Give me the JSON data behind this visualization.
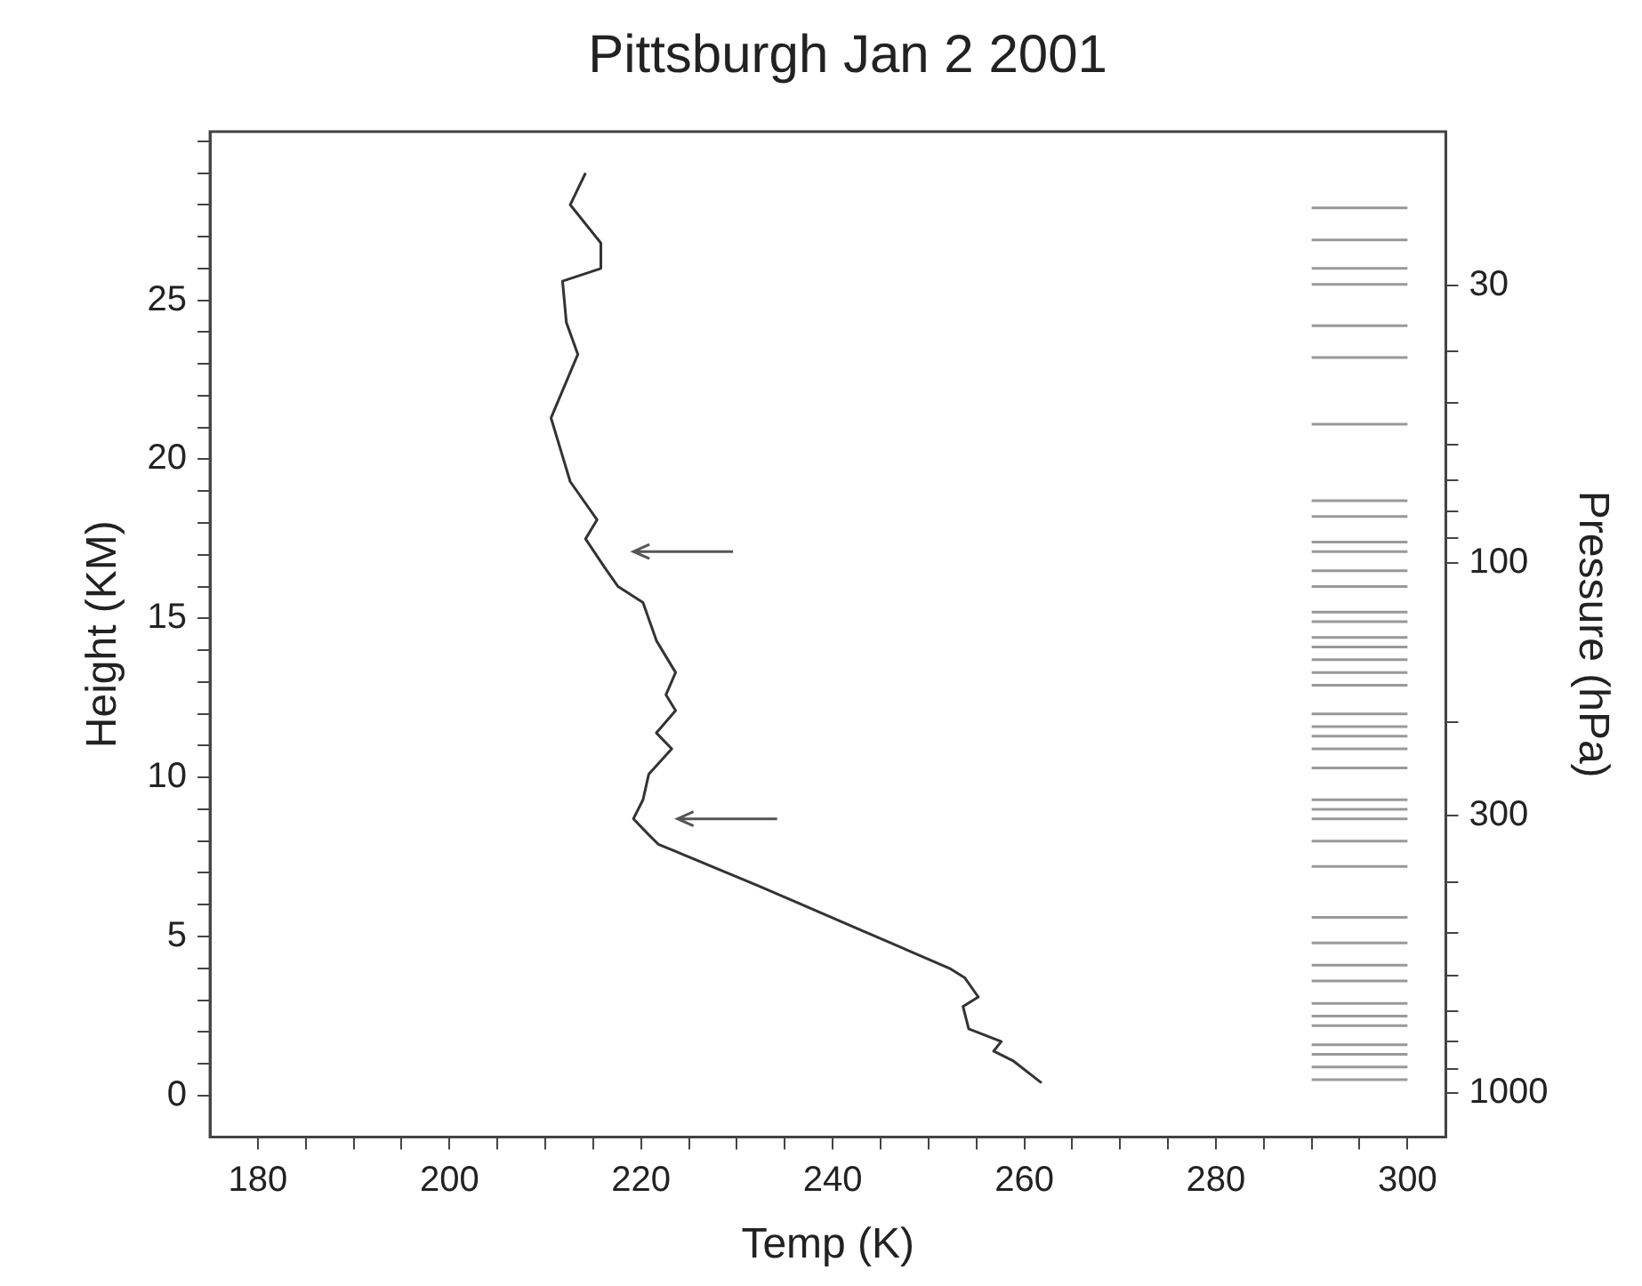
{
  "chart_data": {
    "type": "line",
    "title": "Pittsburgh Jan 2 2001",
    "xlabel": "Temp (K)",
    "ylabel": "Height (KM)",
    "y2label": "Pressure (hPa)",
    "xlim": [
      175,
      304
    ],
    "ylim": [
      -1.3,
      30.3
    ],
    "y2lim": [
      1210,
      15.4
    ],
    "xticks": [
      180,
      {
        "value": 185,
        "label": null
      },
      {
        "value": 190,
        "label": null
      },
      {
        "value": 195,
        "label": null
      },
      200,
      {
        "value": 205,
        "label": null
      },
      {
        "value": 210,
        "label": null
      },
      {
        "value": 215,
        "label": null
      },
      220,
      {
        "value": 225,
        "label": null
      },
      {
        "value": 230,
        "label": null
      },
      {
        "value": 235,
        "label": null
      },
      240,
      {
        "value": 245,
        "label": null
      },
      {
        "value": 250,
        "label": null
      },
      {
        "value": 255,
        "label": null
      },
      260,
      {
        "value": 265,
        "label": null
      },
      {
        "value": 270,
        "label": null
      },
      {
        "value": 275,
        "label": null
      },
      280,
      {
        "value": 285,
        "label": null
      },
      {
        "value": 290,
        "label": null
      },
      {
        "value": 295,
        "label": null
      },
      300
    ],
    "yticks": [
      0,
      {
        "value": 1,
        "label": null
      },
      {
        "value": 2,
        "label": null
      },
      {
        "value": 3,
        "label": null
      },
      {
        "value": 4,
        "label": null
      },
      5,
      {
        "value": 6,
        "label": null
      },
      {
        "value": 7,
        "label": null
      },
      {
        "value": 8,
        "label": null
      },
      {
        "value": 9,
        "label": null
      },
      10,
      {
        "value": 11,
        "label": null
      },
      {
        "value": 12,
        "label": null
      },
      {
        "value": 13,
        "label": null
      },
      {
        "value": 14,
        "label": null
      },
      15,
      {
        "value": 16,
        "label": null
      },
      {
        "value": 17,
        "label": null
      },
      {
        "value": 18,
        "label": null
      },
      {
        "value": 19,
        "label": null
      },
      20,
      {
        "value": 21,
        "label": null
      },
      {
        "value": 22,
        "label": null
      },
      {
        "value": 23,
        "label": null
      },
      {
        "value": 24,
        "label": null
      },
      25,
      {
        "value": 26,
        "label": null
      },
      {
        "value": 27,
        "label": null
      },
      {
        "value": 28,
        "label": null
      },
      {
        "value": 29,
        "label": null
      },
      {
        "value": 30,
        "label": null
      }
    ],
    "y2ticks": [
      30,
      {
        "value": 40,
        "label": null
      },
      {
        "value": 50,
        "label": null
      },
      {
        "value": 60,
        "label": null
      },
      {
        "value": 70,
        "label": null
      },
      {
        "value": 80,
        "label": null
      },
      {
        "value": 90,
        "label": null
      },
      100,
      {
        "value": 200,
        "label": null
      },
      300,
      {
        "value": 400,
        "label": null
      },
      {
        "value": 500,
        "label": null
      },
      {
        "value": 600,
        "label": null
      },
      {
        "value": 700,
        "label": null
      },
      {
        "value": 800,
        "label": null
      },
      {
        "value": 900,
        "label": null
      },
      1000
    ],
    "log": "y2",
    "grid": false,
    "legend": false,
    "marker": "none",
    "line_style": "solid",
    "series": [
      {
        "color": "#333333",
        "x": [
          261.8,
          258.8,
          256.8,
          257.6,
          254.2,
          253.6,
          255.2,
          253.8,
          252.2,
          242.2,
          232.2,
          221.8,
          220.8,
          219.2,
          220.2,
          220.8,
          223.2,
          221.6,
          223.6,
          222.6,
          223.6,
          221.6,
          220.2,
          217.6,
          216.2,
          214.2,
          215.4,
          212.6,
          210.6,
          213.4,
          212.2,
          211.8,
          215.8,
          215.8,
          212.6,
          214.2
        ],
        "values": [
          0.4,
          1.1,
          1.4,
          1.7,
          2.1,
          2.8,
          3.1,
          3.7,
          4.0,
          5.3,
          6.6,
          7.9,
          8.2,
          8.7,
          9.3,
          10.1,
          10.9,
          11.4,
          12.1,
          12.6,
          13.3,
          14.3,
          15.5,
          16.0,
          16.6,
          17.5,
          18.1,
          19.3,
          21.3,
          23.3,
          24.3,
          25.6,
          26.0,
          26.8,
          28.0,
          29.0
        ]
      },
      {
        "color": "#999999",
        "x": [
          290,
          300
        ],
        "values": [
          0.5,
          0.5
        ]
      },
      {
        "color": "#999999",
        "x": [
          290,
          300
        ],
        "values": [
          0.9,
          0.9
        ]
      },
      {
        "color": "#999999",
        "x": [
          290,
          300
        ],
        "values": [
          1.3,
          1.3
        ]
      },
      {
        "color": "#999999",
        "x": [
          290,
          300
        ],
        "values": [
          1.6,
          1.6
        ]
      },
      {
        "color": "#999999",
        "x": [
          290,
          300
        ],
        "values": [
          2.2,
          2.2
        ]
      },
      {
        "color": "#999999",
        "x": [
          290,
          300
        ],
        "values": [
          2.5,
          2.5
        ]
      },
      {
        "color": "#999999",
        "x": [
          290,
          300
        ],
        "values": [
          2.9,
          2.9
        ]
      },
      {
        "color": "#999999",
        "x": [
          290,
          300
        ],
        "values": [
          3.6,
          3.6
        ]
      },
      {
        "color": "#999999",
        "x": [
          290,
          300
        ],
        "values": [
          4.1,
          4.1
        ]
      },
      {
        "color": "#999999",
        "x": [
          290,
          300
        ],
        "values": [
          4.8,
          4.8
        ]
      },
      {
        "color": "#999999",
        "x": [
          290,
          300
        ],
        "values": [
          5.6,
          5.6
        ]
      },
      {
        "color": "#999999",
        "x": [
          290,
          300
        ],
        "values": [
          7.2,
          7.2
        ]
      },
      {
        "color": "#999999",
        "x": [
          290,
          300
        ],
        "values": [
          8.0,
          8.0
        ]
      },
      {
        "color": "#999999",
        "x": [
          290,
          300
        ],
        "values": [
          8.7,
          8.7
        ]
      },
      {
        "color": "#999999",
        "x": [
          290,
          300
        ],
        "values": [
          9.0,
          9.0
        ]
      },
      {
        "color": "#999999",
        "x": [
          290,
          300
        ],
        "values": [
          9.3,
          9.3
        ]
      },
      {
        "color": "#999999",
        "x": [
          290,
          300
        ],
        "values": [
          10.3,
          10.3
        ]
      },
      {
        "color": "#999999",
        "x": [
          290,
          300
        ],
        "values": [
          10.9,
          10.9
        ]
      },
      {
        "color": "#999999",
        "x": [
          290,
          300
        ],
        "values": [
          11.3,
          11.3
        ]
      },
      {
        "color": "#999999",
        "x": [
          290,
          300
        ],
        "values": [
          11.6,
          11.6
        ]
      },
      {
        "color": "#999999",
        "x": [
          290,
          300
        ],
        "values": [
          12.0,
          12.0
        ]
      },
      {
        "color": "#999999",
        "x": [
          290,
          300
        ],
        "values": [
          12.9,
          12.9
        ]
      },
      {
        "color": "#999999",
        "x": [
          290,
          300
        ],
        "values": [
          13.3,
          13.3
        ]
      },
      {
        "color": "#999999",
        "x": [
          290,
          300
        ],
        "values": [
          13.7,
          13.7
        ]
      },
      {
        "color": "#999999",
        "x": [
          290,
          300
        ],
        "values": [
          14.1,
          14.1
        ]
      },
      {
        "color": "#999999",
        "x": [
          290,
          300
        ],
        "values": [
          14.4,
          14.4
        ]
      },
      {
        "color": "#999999",
        "x": [
          290,
          300
        ],
        "values": [
          14.9,
          14.9
        ]
      },
      {
        "color": "#999999",
        "x": [
          290,
          300
        ],
        "values": [
          15.2,
          15.2
        ]
      },
      {
        "color": "#999999",
        "x": [
          290,
          300
        ],
        "values": [
          16.0,
          16.0
        ]
      },
      {
        "color": "#999999",
        "x": [
          290,
          300
        ],
        "values": [
          16.5,
          16.5
        ]
      },
      {
        "color": "#999999",
        "x": [
          290,
          300
        ],
        "values": [
          17.1,
          17.1
        ]
      },
      {
        "color": "#999999",
        "x": [
          290,
          300
        ],
        "values": [
          17.4,
          17.4
        ]
      },
      {
        "color": "#999999",
        "x": [
          290,
          300
        ],
        "values": [
          18.2,
          18.2
        ]
      },
      {
        "color": "#999999",
        "x": [
          290,
          300
        ],
        "values": [
          18.7,
          18.7
        ]
      },
      {
        "color": "#999999",
        "x": [
          290,
          300
        ],
        "values": [
          21.1,
          21.1
        ]
      },
      {
        "color": "#999999",
        "x": [
          290,
          300
        ],
        "values": [
          23.2,
          23.2
        ]
      },
      {
        "color": "#999999",
        "x": [
          290,
          300
        ],
        "values": [
          24.2,
          24.2
        ]
      },
      {
        "color": "#999999",
        "x": [
          290,
          300
        ],
        "values": [
          25.5,
          25.5
        ]
      },
      {
        "color": "#999999",
        "x": [
          290,
          300
        ],
        "values": [
          26.0,
          26.0
        ]
      },
      {
        "color": "#999999",
        "x": [
          290,
          300
        ],
        "values": [
          26.9,
          26.9
        ]
      },
      {
        "color": "#999999",
        "x": [
          290,
          300
        ],
        "values": [
          27.9,
          27.9
        ]
      }
    ]
  }
}
